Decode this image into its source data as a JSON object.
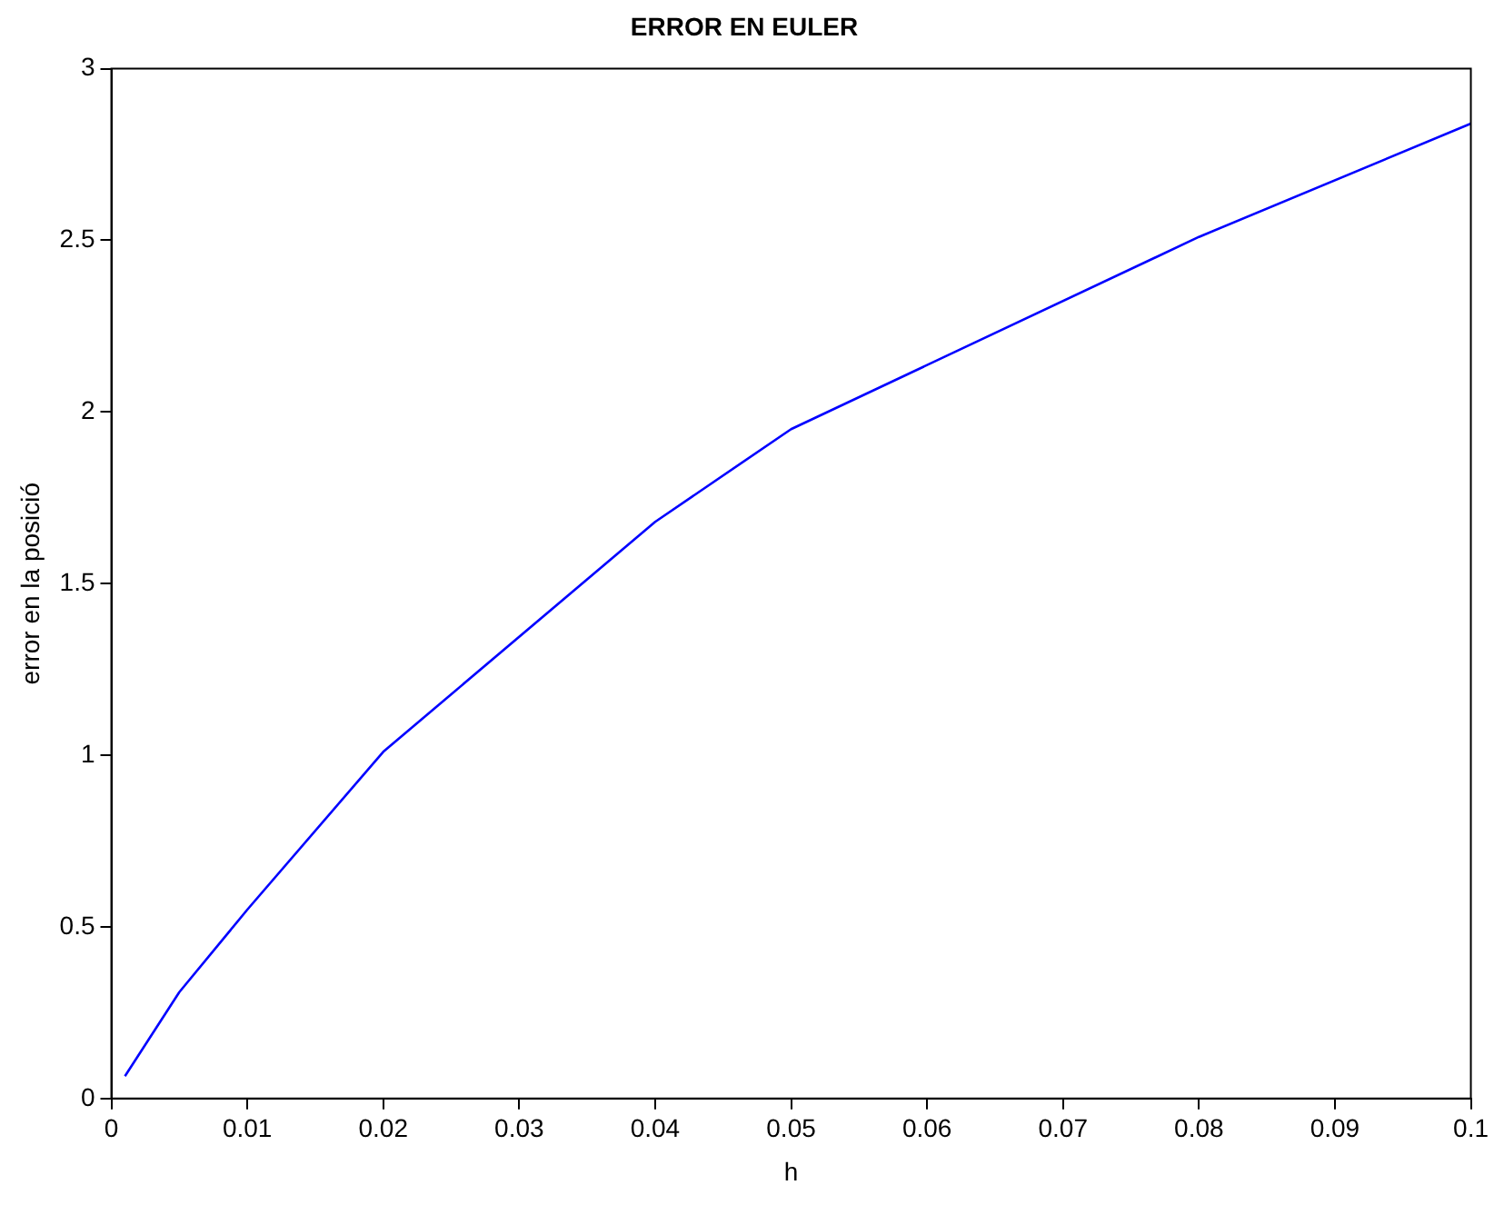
{
  "chart_data": {
    "type": "line",
    "title": "ERROR EN EULER",
    "xlabel": "h",
    "ylabel": "error en la posició",
    "x": [
      0.001,
      0.005,
      0.01,
      0.02,
      0.04,
      0.05,
      0.08,
      0.1
    ],
    "series": [
      {
        "color": "#0000ff",
        "values": [
          0.065,
          0.31,
          0.55,
          1.01,
          1.68,
          1.95,
          2.51,
          2.84
        ]
      }
    ],
    "xlim": [
      0,
      0.1
    ],
    "xticks": [
      0,
      0.01,
      0.02,
      0.03,
      0.04,
      0.05,
      0.06,
      0.07,
      0.08,
      0.09,
      0.1
    ],
    "ylim": [
      0,
      3
    ],
    "yticks": [
      0,
      0.5,
      1,
      1.5,
      2,
      2.5,
      3
    ],
    "grid": false,
    "legend": false,
    "marker": "none",
    "line_style": "solid"
  }
}
